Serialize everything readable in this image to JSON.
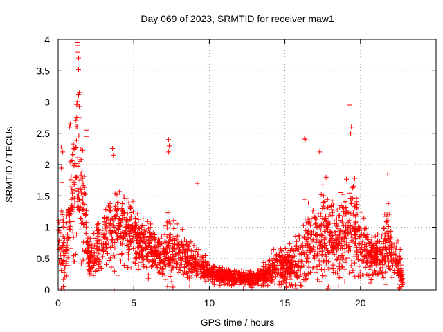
{
  "chart_data": {
    "type": "scatter",
    "title": "Day 069 of 2023, SRMTID for receiver maw1",
    "xlabel": "GPS time / hours",
    "ylabel": "SRMTID / TECUs",
    "xlim": [
      0,
      25
    ],
    "ylim": [
      0,
      4
    ],
    "xticks": [
      "0",
      "5",
      "10",
      "15",
      "20"
    ],
    "yticks": [
      "0",
      "0.5",
      "1",
      "1.5",
      "2",
      "2.5",
      "3",
      "3.5",
      "4"
    ],
    "grid": true,
    "marker": "+",
    "color": "#ff0000",
    "series": [
      {
        "name": "SRMTID",
        "description_of_trend": "dense scatter of TEC perturbation samples",
        "profile": {
          "x": [
            0.0,
            0.2,
            0.5,
            0.8,
            1.0,
            1.3,
            1.5,
            1.8,
            2.0,
            2.3,
            2.6,
            3.0,
            3.3,
            3.6,
            4.0,
            4.3,
            4.6,
            5.0,
            5.5,
            6.0,
            6.5,
            7.0,
            7.3,
            7.6,
            8.0,
            8.5,
            9.0,
            9.5,
            10.0,
            10.5,
            11.0,
            11.5,
            12.0,
            12.5,
            13.0,
            13.5,
            14.0,
            14.5,
            15.0,
            15.5,
            16.0,
            16.3,
            16.6,
            17.0,
            17.5,
            18.0,
            18.5,
            19.0,
            19.3,
            19.6,
            20.0,
            20.5,
            21.0,
            21.5,
            21.8,
            22.0,
            22.5,
            22.8
          ],
          "center": [
            0.8,
            1.0,
            0.5,
            1.2,
            1.5,
            2.0,
            1.5,
            1.1,
            0.5,
            0.55,
            0.6,
            0.7,
            0.9,
            0.8,
            1.1,
            1.1,
            0.9,
            0.85,
            0.75,
            0.65,
            0.55,
            0.55,
            0.7,
            0.6,
            0.6,
            0.5,
            0.45,
            0.35,
            0.28,
            0.25,
            0.22,
            0.2,
            0.2,
            0.18,
            0.18,
            0.22,
            0.3,
            0.35,
            0.4,
            0.4,
            0.45,
            0.6,
            0.75,
            0.8,
            0.85,
            0.85,
            0.8,
            0.9,
            1.0,
            0.9,
            0.7,
            0.55,
            0.5,
            0.6,
            0.9,
            0.6,
            0.4,
            0.15
          ],
          "spread": [
            0.5,
            0.8,
            0.4,
            0.6,
            0.8,
            1.2,
            0.8,
            0.6,
            0.25,
            0.3,
            0.35,
            0.4,
            0.5,
            0.5,
            0.5,
            0.5,
            0.45,
            0.4,
            0.35,
            0.35,
            0.3,
            0.3,
            0.5,
            0.35,
            0.35,
            0.3,
            0.25,
            0.18,
            0.12,
            0.12,
            0.12,
            0.1,
            0.1,
            0.1,
            0.1,
            0.12,
            0.2,
            0.25,
            0.3,
            0.3,
            0.35,
            0.5,
            0.6,
            0.6,
            0.6,
            0.55,
            0.55,
            0.6,
            0.7,
            0.6,
            0.4,
            0.3,
            0.25,
            0.35,
            0.5,
            0.35,
            0.3,
            0.15
          ]
        },
        "outliers": [
          {
            "x": 1.3,
            "y": 3.95
          },
          {
            "x": 1.3,
            "y": 3.9
          },
          {
            "x": 1.3,
            "y": 3.8
          },
          {
            "x": 1.35,
            "y": 3.7
          },
          {
            "x": 1.35,
            "y": 3.52
          },
          {
            "x": 1.4,
            "y": 3.15
          },
          {
            "x": 1.35,
            "y": 3.12
          },
          {
            "x": 1.4,
            "y": 2.93
          },
          {
            "x": 1.45,
            "y": 2.75
          },
          {
            "x": 0.8,
            "y": 2.65
          },
          {
            "x": 0.75,
            "y": 2.6
          },
          {
            "x": 1.9,
            "y": 2.55
          },
          {
            "x": 1.9,
            "y": 2.45
          },
          {
            "x": 0.2,
            "y": 2.28
          },
          {
            "x": 0.3,
            "y": 2.2
          },
          {
            "x": 7.3,
            "y": 2.4
          },
          {
            "x": 7.35,
            "y": 2.3
          },
          {
            "x": 7.3,
            "y": 2.2
          },
          {
            "x": 3.6,
            "y": 2.26
          },
          {
            "x": 3.65,
            "y": 2.15
          },
          {
            "x": 16.3,
            "y": 2.42
          },
          {
            "x": 16.35,
            "y": 2.4
          },
          {
            "x": 19.3,
            "y": 2.95
          },
          {
            "x": 19.4,
            "y": 2.6
          },
          {
            "x": 19.35,
            "y": 2.5
          },
          {
            "x": 17.3,
            "y": 2.2
          },
          {
            "x": 21.8,
            "y": 1.85
          },
          {
            "x": 9.2,
            "y": 1.7
          },
          {
            "x": 0.4,
            "y": 0.0
          },
          {
            "x": 0.35,
            "y": 0.05
          },
          {
            "x": 3.5,
            "y": 0.0
          },
          {
            "x": 3.7,
            "y": 0.0
          },
          {
            "x": 22.6,
            "y": 0.02
          },
          {
            "x": 22.7,
            "y": 0.05
          }
        ]
      }
    ]
  }
}
